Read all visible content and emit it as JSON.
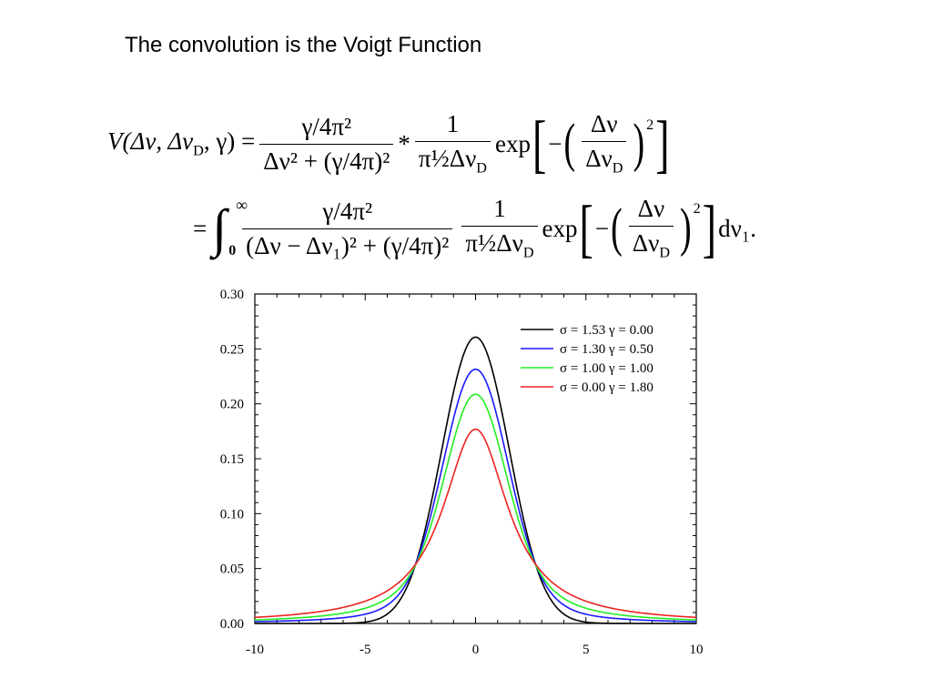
{
  "slide": {
    "title": "The convolution is the Voigt Function"
  },
  "equation": {
    "line1": {
      "lhs": "V(Δν, Δν",
      "lhs_sub": "D",
      "lhs_end": ", γ) =",
      "frac1_num": "γ/4π²",
      "frac1_den": "Δν² + (γ/4π)²",
      "star": "*",
      "frac2_num": "1",
      "frac2_den": "π½Δν",
      "frac2_den_sub": "D",
      "exp": "exp",
      "inner_num": "Δν",
      "inner_den": "Δν",
      "inner_den_sub": "D",
      "power": "2"
    },
    "line2": {
      "eq": "=",
      "int_upper": "∞",
      "int_lower": "0",
      "frac1_num": "γ/4π²",
      "frac1_den": "(Δν − Δν₁)² + (γ/4π)²",
      "frac2_num": "1",
      "frac2_den": "π½Δν",
      "frac2_den_sub": "D",
      "exp": "exp",
      "inner_num": "Δν",
      "inner_den": "Δν",
      "inner_den_sub": "D",
      "power": "2",
      "tail": "dν₁."
    }
  },
  "chart_data": {
    "type": "line",
    "xlim": [
      -10,
      10
    ],
    "ylim": [
      0,
      0.3
    ],
    "x_ticks": [
      -10,
      -5,
      0,
      5,
      10
    ],
    "y_ticks": [
      0.0,
      0.05,
      0.1,
      0.15,
      0.2,
      0.25,
      0.3
    ],
    "x_tick_labels": [
      "-10",
      "-5",
      "0",
      "5",
      "10"
    ],
    "y_tick_labels": [
      "0.00",
      "0.05",
      "0.10",
      "0.15",
      "0.20",
      "0.25",
      "0.30"
    ],
    "legend_position": "top-right",
    "series": [
      {
        "name": "σ = 1.53   γ = 0.00",
        "sigma": 1.53,
        "gamma": 0.0,
        "color": "#000000"
      },
      {
        "name": "σ = 1.30   γ = 0.50",
        "sigma": 1.3,
        "gamma": 0.5,
        "color": "#1a1aff"
      },
      {
        "name": "σ = 1.00   γ = 1.00",
        "sigma": 1.0,
        "gamma": 1.0,
        "color": "#22ee22"
      },
      {
        "name": "σ = 0.00   γ = 1.80",
        "sigma": 0.0,
        "gamma": 1.8,
        "color": "#ee2222"
      }
    ]
  }
}
